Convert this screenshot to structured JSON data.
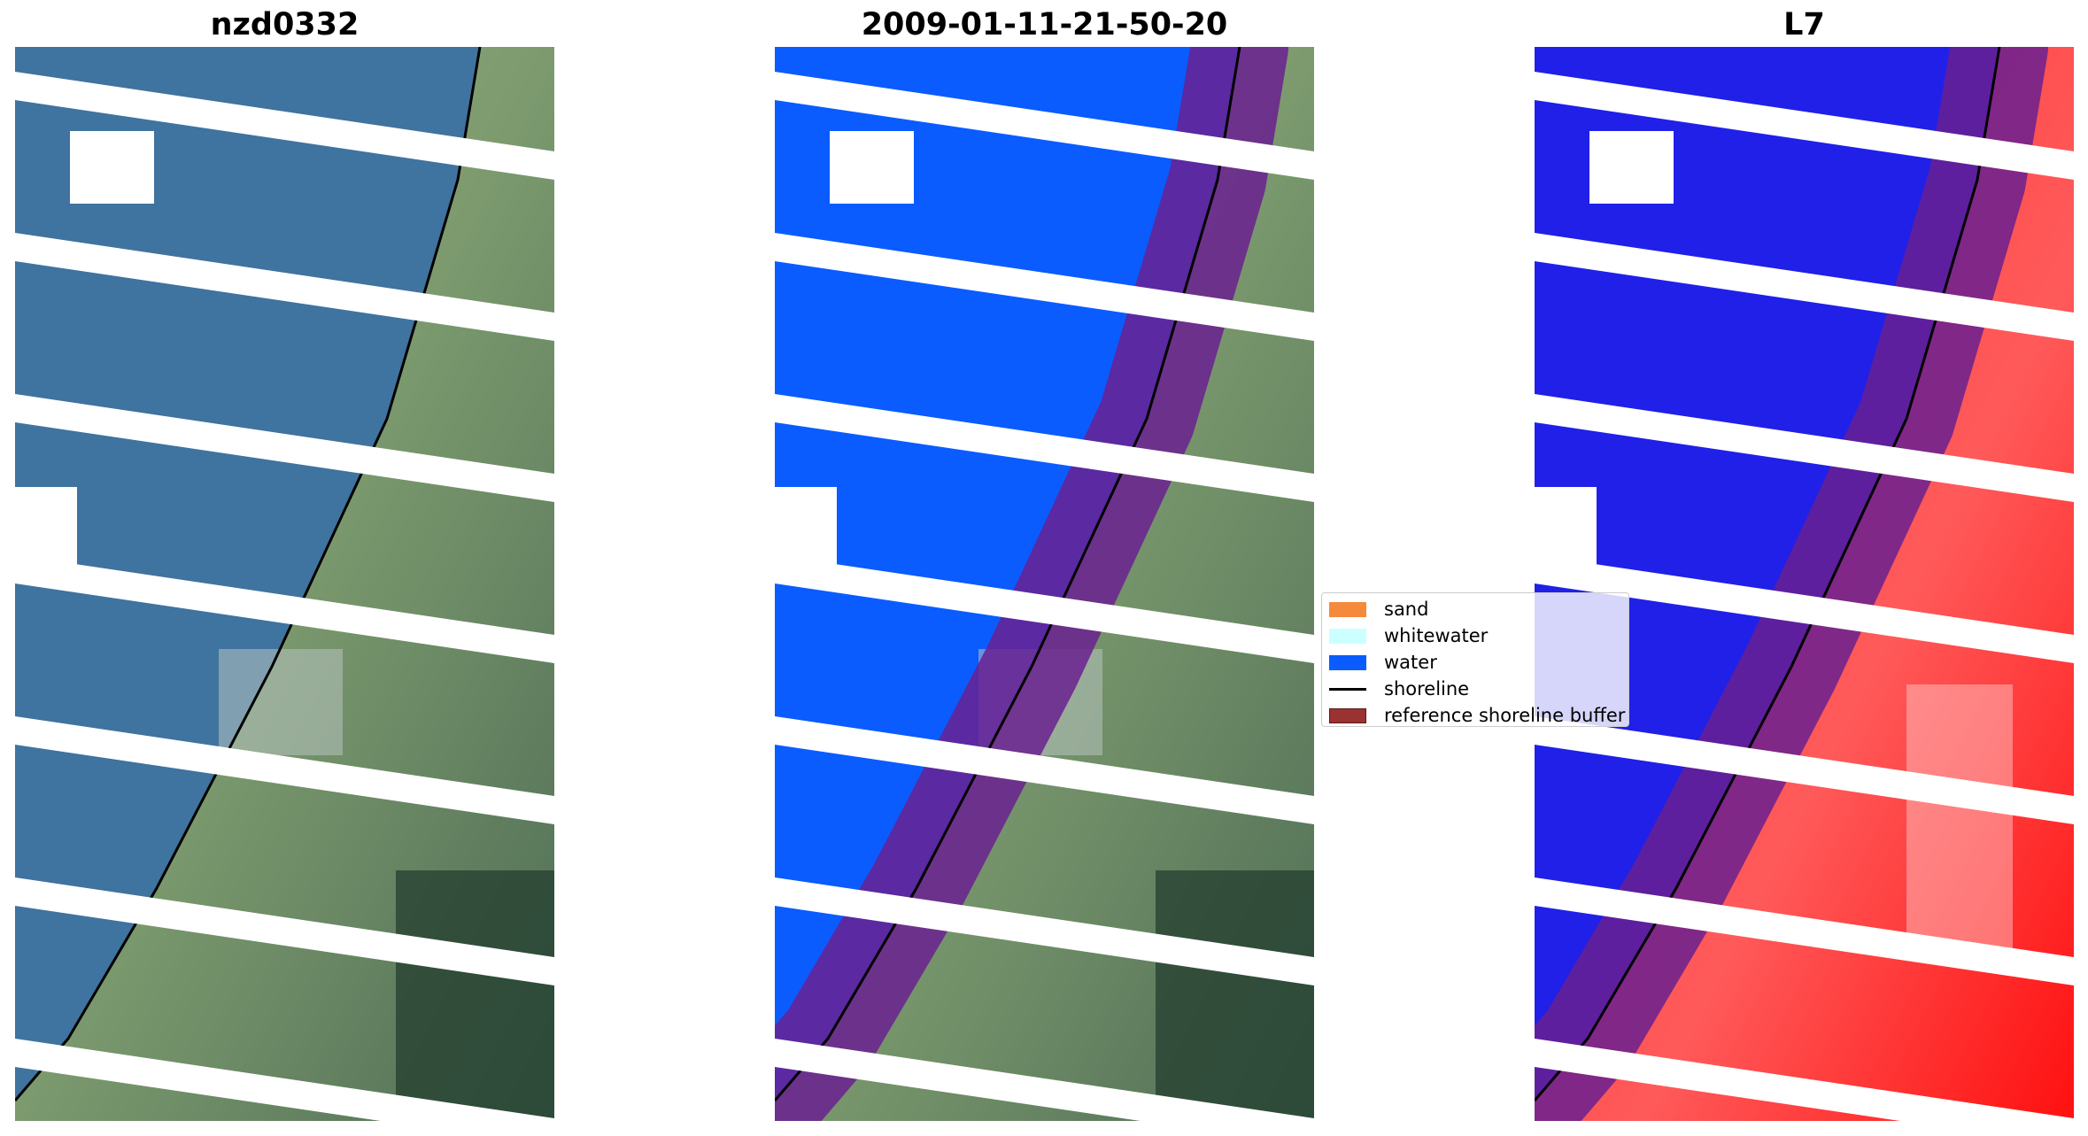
{
  "panels": [
    {
      "title": "nzd0332"
    },
    {
      "title": "2009-01-11-21-50-20"
    },
    {
      "title": "L7"
    }
  ],
  "legend": {
    "items": [
      {
        "label": "sand",
        "color": "#f58a3c",
        "kind": "patch"
      },
      {
        "label": "whitewater",
        "color": "#ccffff",
        "kind": "patch"
      },
      {
        "label": "water",
        "color": "#0a5cff",
        "kind": "patch"
      },
      {
        "label": "shoreline",
        "color": "#000000",
        "kind": "line"
      },
      {
        "label": "reference shoreline buffer",
        "color": "#9b3232",
        "kind": "patch"
      }
    ]
  },
  "colors": {
    "ocean_rgb": "#3f73a0",
    "land_rgb": "#8aa478",
    "water_class": "#0a5cff",
    "buffer_overlay": "#6a2090",
    "ndwi_water": "#2020e8",
    "ndwi_land": "#f51c1c"
  }
}
